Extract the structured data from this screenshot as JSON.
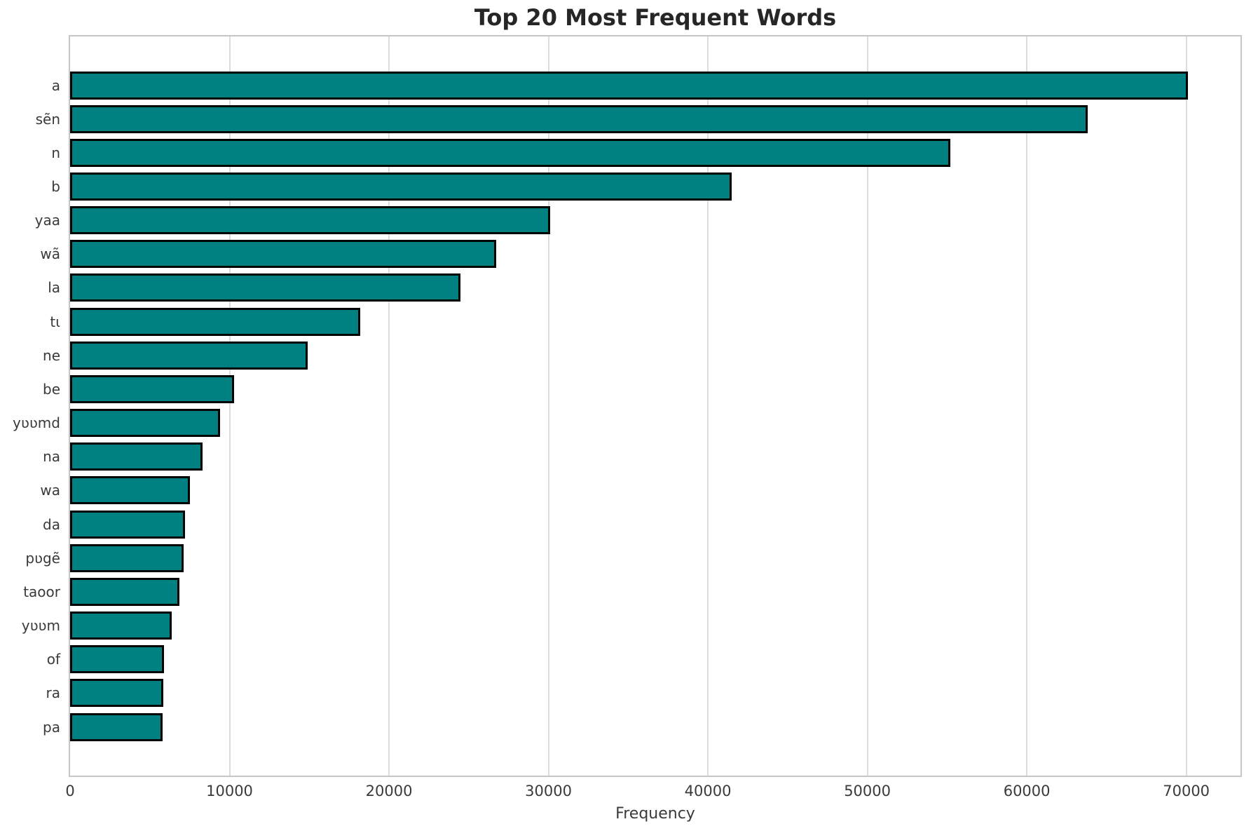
{
  "chart_data": {
    "type": "bar",
    "orientation": "horizontal",
    "title": "Top 20 Most Frequent Words",
    "xlabel": "Frequency",
    "ylabel": "",
    "categories": [
      "a",
      "sẽn",
      "n",
      "b",
      "yaa",
      "wã",
      "la",
      "tɩ",
      "ne",
      "be",
      "yʋʋmd",
      "na",
      "wa",
      "da",
      "pʋgẽ",
      "taoor",
      "yʋʋm",
      "of",
      "ra",
      "pa"
    ],
    "values": [
      70100,
      63800,
      55200,
      41500,
      30100,
      26700,
      24500,
      18200,
      14900,
      10300,
      9400,
      8300,
      7500,
      7200,
      7100,
      6850,
      6350,
      5900,
      5850,
      5820
    ],
    "xlim": [
      0,
      73400
    ],
    "xticks": [
      0,
      10000,
      20000,
      30000,
      40000,
      50000,
      60000,
      70000
    ],
    "grid": true,
    "legend": false,
    "colors": {
      "bar_fill": "#008080",
      "bar_edge": "#000000",
      "gridline": "#dcdcdc",
      "spine": "#c6c6c6",
      "tick_text": "#3a3a3a",
      "title_text": "#262626",
      "background": "#ffffff"
    }
  }
}
